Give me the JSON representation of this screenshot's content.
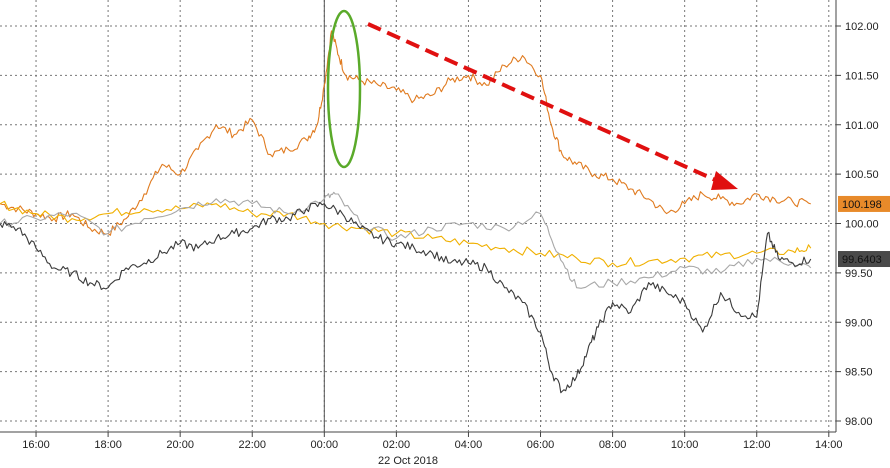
{
  "chart_data": {
    "type": "line",
    "title": "",
    "xlabel": "",
    "ylabel": "",
    "date_label": "22 Oct 2018",
    "x_tick_labels": [
      "16:00",
      "18:00",
      "20:00",
      "22:00",
      "00:00",
      "02:00",
      "04:00",
      "06:00",
      "08:00",
      "10:00",
      "12:00",
      "14:00"
    ],
    "y_tick_labels": [
      "98.00",
      "98.50",
      "99.00",
      "99.50",
      "100.00",
      "100.50",
      "101.00",
      "101.50",
      "102.00"
    ],
    "ylim": [
      98.0,
      102.0
    ],
    "xlim_hours": [
      15.0,
      38.2
    ],
    "grid": true,
    "series": [
      {
        "name": "",
        "color": "#e07b20",
        "last_value_label": "100.198",
        "x_hours": [
          15.0,
          15.5,
          16.0,
          16.5,
          17.0,
          17.5,
          18.0,
          18.5,
          19.0,
          19.5,
          20.0,
          20.5,
          21.0,
          21.5,
          22.0,
          22.5,
          23.0,
          23.5,
          23.8,
          24.0,
          24.2,
          24.4,
          24.6,
          25.0,
          25.5,
          26.0,
          26.5,
          27.0,
          27.5,
          28.0,
          28.5,
          29.0,
          29.5,
          30.0,
          30.3,
          30.6,
          31.0,
          31.5,
          32.0,
          32.5,
          33.0,
          33.5,
          34.0,
          34.5,
          35.0,
          35.5,
          36.0,
          36.5,
          37.0,
          37.5
        ],
        "values": [
          100.2,
          100.15,
          100.1,
          100.05,
          100.1,
          99.95,
          99.9,
          100.05,
          100.3,
          100.6,
          100.5,
          100.75,
          101.0,
          100.9,
          101.05,
          100.7,
          100.75,
          100.85,
          101.0,
          101.4,
          101.95,
          101.7,
          101.5,
          101.45,
          101.4,
          101.35,
          101.25,
          101.3,
          101.45,
          101.5,
          101.4,
          101.6,
          101.7,
          101.5,
          101.0,
          100.7,
          100.6,
          100.5,
          100.45,
          100.35,
          100.25,
          100.1,
          100.2,
          100.3,
          100.25,
          100.2,
          100.3,
          100.25,
          100.22,
          100.198
        ]
      },
      {
        "name": "",
        "color": "#f0b000",
        "last_value_label": "",
        "x_hours": [
          15.0,
          16.0,
          17.0,
          18.0,
          19.0,
          20.0,
          21.0,
          22.0,
          23.0,
          24.0,
          25.0,
          26.0,
          27.0,
          28.0,
          29.0,
          30.0,
          31.0,
          32.0,
          33.0,
          34.0,
          35.0,
          36.0,
          37.0,
          37.5
        ],
        "values": [
          100.2,
          100.1,
          100.05,
          100.1,
          100.15,
          100.15,
          100.2,
          100.1,
          100.1,
          100.0,
          99.95,
          99.9,
          99.85,
          99.8,
          99.75,
          99.7,
          99.65,
          99.6,
          99.62,
          99.65,
          99.68,
          99.7,
          99.72,
          99.75
        ]
      },
      {
        "name": "",
        "color": "#a8a8a8",
        "last_value_label": "",
        "x_hours": [
          15.0,
          16.0,
          17.0,
          18.0,
          19.0,
          20.0,
          21.0,
          22.0,
          23.0,
          24.0,
          24.3,
          25.0,
          26.0,
          27.0,
          28.0,
          29.0,
          30.0,
          30.5,
          31.0,
          32.0,
          33.0,
          34.0,
          35.0,
          36.0,
          37.0,
          37.5
        ],
        "values": [
          100.0,
          100.05,
          100.1,
          99.9,
          100.05,
          100.15,
          100.25,
          100.2,
          100.1,
          100.25,
          100.3,
          100.0,
          99.85,
          99.95,
          100.0,
          99.95,
          100.1,
          99.7,
          99.35,
          99.4,
          99.45,
          99.55,
          99.5,
          99.65,
          99.6,
          99.55
        ]
      },
      {
        "name": "",
        "color": "#3a3a3a",
        "last_value_label": "99.6403",
        "x_hours": [
          15.0,
          15.5,
          16.0,
          16.5,
          17.0,
          17.5,
          18.0,
          18.5,
          19.0,
          19.5,
          20.0,
          20.5,
          21.0,
          21.5,
          22.0,
          22.5,
          23.0,
          23.5,
          24.0,
          24.5,
          25.0,
          25.5,
          26.0,
          26.5,
          27.0,
          27.5,
          28.0,
          28.5,
          29.0,
          29.5,
          30.0,
          30.3,
          30.6,
          31.0,
          31.3,
          31.6,
          32.0,
          32.5,
          33.0,
          33.5,
          34.0,
          34.5,
          35.0,
          35.5,
          36.0,
          36.3,
          36.6,
          37.0,
          37.5
        ],
        "values": [
          100.0,
          99.95,
          99.75,
          99.55,
          99.5,
          99.4,
          99.35,
          99.55,
          99.6,
          99.7,
          99.8,
          99.75,
          99.85,
          99.9,
          99.95,
          100.05,
          100.05,
          100.15,
          100.2,
          100.1,
          99.95,
          99.85,
          99.8,
          99.75,
          99.7,
          99.6,
          99.6,
          99.55,
          99.35,
          99.2,
          98.9,
          98.5,
          98.3,
          98.45,
          98.7,
          98.95,
          99.2,
          99.1,
          99.4,
          99.3,
          99.2,
          98.9,
          99.3,
          99.1,
          99.05,
          99.9,
          99.65,
          99.6,
          99.64
        ]
      }
    ],
    "event_line_hour": 24.0,
    "annotations": {
      "ellipse_color": "#5aaa2a",
      "arrow_color": "#e01010"
    }
  }
}
